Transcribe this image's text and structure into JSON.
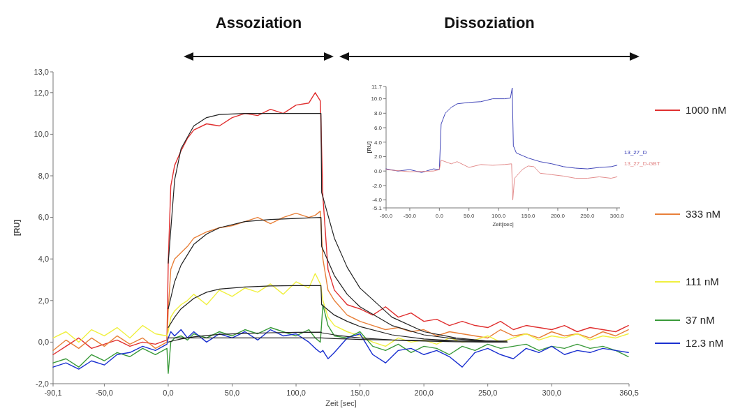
{
  "chart_data": [
    {
      "type": "line",
      "xlabel": "Zeit [sec]",
      "ylabel": "[RU]",
      "annotations": [
        "Assoziation",
        "Dissoziation"
      ],
      "legend": "right",
      "xlim": [
        -90.1,
        360.5
      ],
      "ylim": [
        -2,
        13
      ],
      "xticks": [
        {
          "value": -90.1,
          "label": "-90,1"
        },
        {
          "value": -50,
          "label": "-50,0"
        },
        {
          "value": 0,
          "label": "0,0"
        },
        {
          "value": 50,
          "label": "50,0"
        },
        {
          "value": 100,
          "label": "100,0"
        },
        {
          "value": 150,
          "label": "150,0"
        },
        {
          "value": 200,
          "label": "200,0"
        },
        {
          "value": 250,
          "label": "250,0"
        },
        {
          "value": 300,
          "label": "300,0"
        },
        {
          "value": 360.5,
          "label": "360,5"
        }
      ],
      "yticks": [
        {
          "value": -2,
          "label": "-2,0"
        },
        {
          "value": 0,
          "label": "0,0"
        },
        {
          "value": 2,
          "label": "2,0"
        },
        {
          "value": 4,
          "label": "4,0"
        },
        {
          "value": 6,
          "label": "6,0"
        },
        {
          "value": 8,
          "label": "8,0"
        },
        {
          "value": 10,
          "label": "10,0"
        },
        {
          "value": 12,
          "label": "12,0"
        },
        {
          "value": 13,
          "label": "13,0"
        }
      ],
      "x": [
        -90,
        -80,
        -70,
        -60,
        -50,
        -40,
        -30,
        -20,
        -10,
        -1,
        0,
        2,
        5,
        10,
        15,
        20,
        30,
        40,
        50,
        60,
        70,
        80,
        90,
        100,
        110,
        115,
        119,
        121,
        125,
        130,
        140,
        150,
        160,
        170,
        180,
        190,
        200,
        210,
        220,
        230,
        240,
        250,
        260,
        270,
        280,
        290,
        300,
        310,
        320,
        330,
        340,
        350,
        360
      ],
      "series": [
        {
          "name": "1000 nM",
          "color": "#e03030",
          "values": [
            -0.6,
            -0.2,
            0.2,
            -0.3,
            -0.1,
            0.1,
            -0.2,
            0.0,
            -0.1,
            0.1,
            3.8,
            7.5,
            8.5,
            9.2,
            9.8,
            10.2,
            10.5,
            10.4,
            10.8,
            11.0,
            10.9,
            11.2,
            11.0,
            11.4,
            11.5,
            12.0,
            11.6,
            7.0,
            3.5,
            2.5,
            1.8,
            1.6,
            1.3,
            1.7,
            1.2,
            1.4,
            1.0,
            1.1,
            0.8,
            1.0,
            0.8,
            0.7,
            1.0,
            0.6,
            0.8,
            0.7,
            0.6,
            0.8,
            0.5,
            0.7,
            0.6,
            0.5,
            0.8
          ]
        },
        {
          "name": "333 nM",
          "color": "#e8803a",
          "values": [
            -0.4,
            0.1,
            -0.3,
            0.2,
            -0.2,
            0.3,
            -0.1,
            0.2,
            -0.3,
            0.0,
            1.5,
            3.5,
            4.0,
            4.3,
            4.6,
            5.0,
            5.3,
            5.5,
            5.6,
            5.8,
            6.0,
            5.7,
            6.0,
            6.2,
            6.0,
            6.1,
            6.3,
            4.0,
            2.5,
            2.0,
            1.3,
            1.0,
            0.8,
            0.6,
            0.7,
            0.5,
            0.6,
            0.3,
            0.5,
            0.4,
            0.3,
            0.2,
            0.6,
            0.3,
            0.4,
            0.2,
            0.5,
            0.3,
            0.4,
            0.2,
            0.5,
            0.3,
            0.6
          ]
        },
        {
          "name": "111 nM",
          "color": "#f0f040",
          "values": [
            0.2,
            0.5,
            0.0,
            0.6,
            0.3,
            0.7,
            0.2,
            0.8,
            0.4,
            0.3,
            0.5,
            1.2,
            1.5,
            1.8,
            2.0,
            2.3,
            1.8,
            2.5,
            2.2,
            2.6,
            2.4,
            2.8,
            2.3,
            2.9,
            2.6,
            3.3,
            2.8,
            2.0,
            1.2,
            0.8,
            0.5,
            0.3,
            0.0,
            -0.2,
            0.2,
            0.0,
            0.1,
            -0.1,
            0.2,
            0.0,
            0.1,
            0.3,
            0.0,
            0.2,
            0.4,
            0.1,
            0.3,
            0.2,
            0.4,
            0.1,
            0.3,
            0.2,
            0.4
          ]
        },
        {
          "name": "37 nM",
          "color": "#3a9a3a",
          "values": [
            -1.0,
            -0.8,
            -1.2,
            -0.6,
            -0.9,
            -0.5,
            -0.7,
            -0.3,
            -0.6,
            -0.3,
            -1.5,
            0.0,
            0.2,
            0.3,
            0.1,
            0.4,
            0.2,
            0.5,
            0.3,
            0.6,
            0.4,
            0.7,
            0.5,
            0.3,
            0.6,
            0.2,
            0.0,
            1.8,
            0.8,
            0.3,
            0.2,
            0.5,
            -0.2,
            -0.4,
            -0.1,
            -0.5,
            -0.2,
            -0.3,
            -0.6,
            -0.2,
            -0.4,
            -0.1,
            -0.3,
            -0.2,
            -0.1,
            -0.4,
            -0.2,
            -0.3,
            -0.1,
            -0.3,
            -0.2,
            -0.4,
            -0.7
          ]
        },
        {
          "name": "12.3 nM",
          "color": "#1a30d0",
          "values": [
            -1.2,
            -1.0,
            -1.3,
            -0.9,
            -1.1,
            -0.6,
            -0.5,
            -0.2,
            -0.4,
            -0.1,
            0.2,
            0.5,
            0.3,
            0.6,
            0.2,
            0.5,
            0.0,
            0.4,
            0.2,
            0.5,
            0.1,
            0.6,
            0.3,
            0.4,
            0.0,
            -0.3,
            -0.5,
            -0.4,
            -0.8,
            -0.5,
            0.2,
            0.4,
            -0.6,
            -1.0,
            -0.4,
            -0.3,
            -0.6,
            -0.4,
            -0.7,
            -1.2,
            -0.5,
            -0.3,
            -0.6,
            -0.8,
            -0.3,
            -0.5,
            -0.2,
            -0.6,
            -0.4,
            -0.5,
            -0.3,
            -0.4,
            -0.5
          ]
        },
        {
          "color": "#222222",
          "x": [
            0,
            5,
            10,
            20,
            30,
            40,
            60,
            80,
            100,
            119.5,
            120,
            130,
            140,
            150,
            175,
            200,
            225,
            250,
            265
          ],
          "values": [
            3.8,
            7.8,
            9.3,
            10.4,
            10.8,
            10.95,
            11,
            11,
            11,
            11,
            7.2,
            5.0,
            3.6,
            2.6,
            1.2,
            0.5,
            0.2,
            0.05,
            0.0
          ]
        },
        {
          "color": "#222222",
          "x": [
            0,
            5,
            10,
            20,
            30,
            40,
            60,
            80,
            100,
            119.5,
            120,
            130,
            140,
            150,
            175,
            200,
            225,
            250,
            265
          ],
          "values": [
            1.6,
            2.9,
            3.7,
            4.7,
            5.2,
            5.5,
            5.8,
            5.9,
            5.95,
            6.0,
            4.6,
            3.2,
            2.3,
            1.7,
            0.8,
            0.35,
            0.15,
            0.05,
            0.0
          ]
        },
        {
          "color": "#222222",
          "x": [
            0,
            5,
            10,
            20,
            30,
            40,
            60,
            80,
            100,
            119.5,
            120,
            130,
            140,
            150,
            175,
            200,
            225,
            250,
            265
          ],
          "values": [
            0.7,
            1.2,
            1.6,
            2.1,
            2.4,
            2.55,
            2.65,
            2.7,
            2.72,
            2.72,
            1.8,
            1.3,
            1.0,
            0.75,
            0.35,
            0.15,
            0.06,
            0.02,
            0.0
          ]
        },
        {
          "color": "#222222",
          "x": [
            0,
            5,
            10,
            20,
            30,
            40,
            60,
            80,
            100,
            119.5,
            120,
            130,
            140,
            150,
            175,
            200,
            225,
            250,
            265
          ],
          "values": [
            0.0,
            0.08,
            0.15,
            0.25,
            0.32,
            0.37,
            0.42,
            0.45,
            0.47,
            0.48,
            0.45,
            0.35,
            0.27,
            0.2,
            0.1,
            0.05,
            0.02,
            0.0,
            0.0
          ]
        },
        {
          "color": "#222222",
          "x": [
            0,
            5,
            10,
            20,
            30,
            40,
            60,
            80,
            100,
            119.5,
            120,
            130,
            140,
            150,
            175,
            200,
            225,
            250,
            265
          ],
          "values": [
            0.2,
            0.2,
            0.2,
            0.2,
            0.2,
            0.2,
            0.2,
            0.2,
            0.2,
            0.2,
            0.2,
            0.17,
            0.15,
            0.13,
            0.1,
            0.08,
            0.06,
            0.05,
            0.05
          ]
        }
      ]
    },
    {
      "type": "line",
      "xlabel": "Zeit[sec]",
      "ylabel": "[RU]",
      "legend": "right",
      "xlim": [
        -90,
        305
      ],
      "ylim": [
        -5.1,
        11.7
      ],
      "xticks": [
        {
          "value": -90,
          "label": "-90.0"
        },
        {
          "value": -50,
          "label": "-50.0"
        },
        {
          "value": 0,
          "label": "0.0"
        },
        {
          "value": 50,
          "label": "50.0"
        },
        {
          "value": 100,
          "label": "100.0"
        },
        {
          "value": 150,
          "label": "150.0"
        },
        {
          "value": 200,
          "label": "200.0"
        },
        {
          "value": 250,
          "label": "250.0"
        },
        {
          "value": 300,
          "label": "300.0"
        }
      ],
      "yticks": [
        {
          "value": -5.1,
          "label": "-5.1"
        },
        {
          "value": -4,
          "label": "-4.0"
        },
        {
          "value": -2,
          "label": "-2.0"
        },
        {
          "value": 0,
          "label": "0.0"
        },
        {
          "value": 2,
          "label": "2.0"
        },
        {
          "value": 4,
          "label": "4.0"
        },
        {
          "value": 6,
          "label": "6.0"
        },
        {
          "value": 8,
          "label": "8.0"
        },
        {
          "value": 10,
          "label": "10.0"
        },
        {
          "value": 11.7,
          "label": "11.7"
        }
      ],
      "series": [
        {
          "name": "13_27_D",
          "color": "#2a30b0",
          "x": [
            -90,
            -70,
            -50,
            -30,
            -10,
            0,
            3,
            10,
            20,
            30,
            50,
            70,
            90,
            110,
            120,
            123,
            125,
            130,
            150,
            170,
            190,
            210,
            230,
            250,
            270,
            290,
            300
          ],
          "values": [
            0.3,
            0.0,
            0.2,
            -0.2,
            0.3,
            0.2,
            6.5,
            8.0,
            8.8,
            9.3,
            9.5,
            9.6,
            10.0,
            10.0,
            10.1,
            11.5,
            3.5,
            2.5,
            1.8,
            1.3,
            1.0,
            0.6,
            0.4,
            0.3,
            0.5,
            0.6,
            0.8
          ]
        },
        {
          "name": "13_27_D-GBT",
          "color": "#e08080",
          "x": [
            -90,
            -50,
            -10,
            0,
            3,
            20,
            30,
            50,
            70,
            90,
            110,
            122,
            124,
            127,
            140,
            150,
            160,
            170,
            190,
            210,
            230,
            250,
            270,
            290,
            300
          ],
          "values": [
            0.2,
            -0.1,
            0.0,
            0.2,
            1.5,
            1.0,
            1.3,
            0.5,
            0.9,
            0.8,
            0.9,
            1.0,
            -4.0,
            -1.0,
            0.2,
            0.7,
            0.6,
            -0.3,
            -0.5,
            -0.7,
            -1.0,
            -1.0,
            -0.8,
            -1.0,
            -0.8
          ]
        }
      ]
    }
  ]
}
